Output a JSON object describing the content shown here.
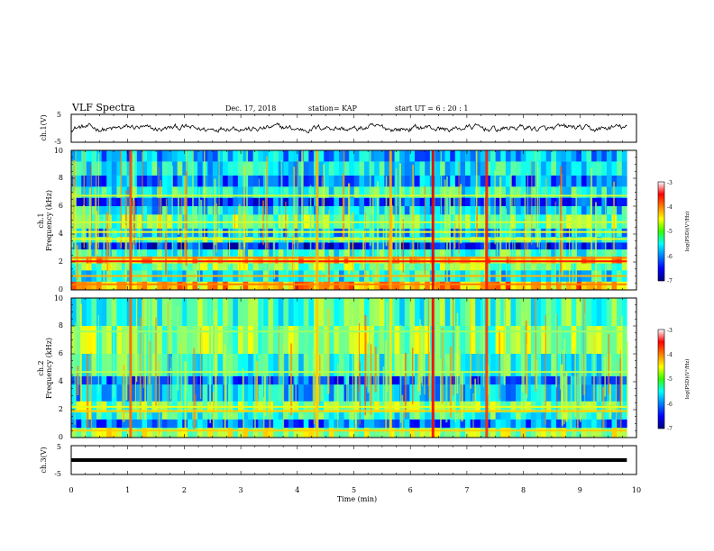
{
  "header": {
    "title": "VLF Spectra",
    "date": "Dec. 17, 2018",
    "station": "station= KAP",
    "start_ut": "start  UT =   6  : 20 : 1"
  },
  "chart_data": [
    {
      "type": "line",
      "name": "ch1-waveform",
      "ylabel": "ch.1(V)",
      "ylim": [
        -5,
        5
      ],
      "yticks": [
        "5",
        "-5"
      ],
      "xlim": [
        0,
        10
      ],
      "x_end": 9.83,
      "trace": "noisy waveform centred near 0 V, amplitude about ±1.5 V"
    },
    {
      "type": "heatmap",
      "name": "ch1-spectrogram",
      "ylabel": "ch.1",
      "ylabel2": "Frequency  (kHz)",
      "ylim": [
        0,
        10
      ],
      "yticks": [
        "0",
        "2",
        "4",
        "6",
        "8",
        "10"
      ],
      "xlim": [
        0,
        10
      ],
      "x_end": 9.83,
      "colorbar": {
        "label": "log(PSD)(V²/Hz)",
        "range": [
          -7,
          -3
        ],
        "ticks": [
          "-3",
          "-4",
          "-5",
          "-6",
          "-7"
        ]
      },
      "bands": [
        {
          "f0": 0.0,
          "f1": 0.6,
          "level": -4.2
        },
        {
          "f0": 0.6,
          "f1": 1.4,
          "level": -5.5
        },
        {
          "f0": 1.4,
          "f1": 1.9,
          "level": -5.0
        },
        {
          "f0": 1.9,
          "f1": 2.4,
          "level": -4.3
        },
        {
          "f0": 2.4,
          "f1": 2.9,
          "level": -5.3
        },
        {
          "f0": 2.9,
          "f1": 3.4,
          "level": -6.4
        },
        {
          "f0": 3.4,
          "f1": 3.8,
          "level": -5.2
        },
        {
          "f0": 3.8,
          "f1": 4.4,
          "level": -5.8
        },
        {
          "f0": 4.4,
          "f1": 5.4,
          "level": -5.1
        },
        {
          "f0": 5.4,
          "f1": 6.0,
          "level": -5.6
        },
        {
          "f0": 6.0,
          "f1": 6.6,
          "level": -6.2
        },
        {
          "f0": 6.6,
          "f1": 7.4,
          "level": -5.4
        },
        {
          "f0": 7.4,
          "f1": 8.2,
          "level": -6.0
        },
        {
          "f0": 8.2,
          "f1": 9.2,
          "level": -5.5
        },
        {
          "f0": 9.2,
          "f1": 10.0,
          "level": -5.8
        }
      ],
      "lines": [
        {
          "f": 0.4,
          "level": -4.0
        },
        {
          "f": 1.0,
          "level": -4.2
        },
        {
          "f": 2.05,
          "level": -3.6
        },
        {
          "f": 2.3,
          "level": -4.0
        },
        {
          "f": 3.65,
          "level": -4.6
        },
        {
          "f": 4.15,
          "level": -4.6
        },
        {
          "f": 4.85,
          "level": -4.7
        },
        {
          "f": 6.75,
          "level": -4.7
        }
      ],
      "bursts": [
        {
          "t": 1.05,
          "level": -3.8
        },
        {
          "t": 4.35,
          "level": -4.2
        },
        {
          "t": 5.65,
          "level": -4.2
        },
        {
          "t": 6.4,
          "level": -3.4
        },
        {
          "t": 7.35,
          "level": -3.6
        }
      ]
    },
    {
      "type": "heatmap",
      "name": "ch2-spectrogram",
      "ylabel": "ch.2",
      "ylabel2": "Frequency  (kHz)",
      "ylim": [
        0,
        10
      ],
      "yticks": [
        "0",
        "2",
        "4",
        "6",
        "8",
        "10"
      ],
      "xlim": [
        0,
        10
      ],
      "x_end": 9.83,
      "colorbar": {
        "label": "log(PSD)(V²/Hz)",
        "range": [
          -7,
          -3
        ],
        "ticks": [
          "-3",
          "-4",
          "-5",
          "-6",
          "-7"
        ]
      },
      "bands": [
        {
          "f0": 0.0,
          "f1": 0.7,
          "level": -4.8
        },
        {
          "f0": 0.7,
          "f1": 1.3,
          "level": -6.0
        },
        {
          "f0": 1.3,
          "f1": 1.8,
          "level": -5.3
        },
        {
          "f0": 1.8,
          "f1": 2.6,
          "level": -5.0
        },
        {
          "f0": 2.6,
          "f1": 3.8,
          "level": -5.7
        },
        {
          "f0": 3.8,
          "f1": 4.4,
          "level": -6.1
        },
        {
          "f0": 4.4,
          "f1": 6.0,
          "level": -5.3
        },
        {
          "f0": 6.0,
          "f1": 8.0,
          "level": -5.0
        },
        {
          "f0": 8.0,
          "f1": 10.0,
          "level": -5.2
        }
      ],
      "lines": [
        {
          "f": 0.5,
          "level": -4.3
        },
        {
          "f": 1.9,
          "level": -4.3
        },
        {
          "f": 2.2,
          "level": -4.6
        },
        {
          "f": 4.7,
          "level": -4.8
        },
        {
          "f": 7.6,
          "level": -4.9
        }
      ],
      "bursts": [
        {
          "t": 1.05,
          "level": -3.9
        },
        {
          "t": 4.35,
          "level": -4.3
        },
        {
          "t": 5.65,
          "level": -4.4
        },
        {
          "t": 6.4,
          "level": -3.5
        },
        {
          "t": 7.35,
          "level": -3.7
        }
      ]
    },
    {
      "type": "line",
      "name": "ch3-waveform",
      "ylabel": "ch.3(V)",
      "ylim": [
        -5,
        5
      ],
      "yticks": [
        "5",
        "-5"
      ],
      "xlim": [
        0,
        10
      ],
      "x_end": 9.83,
      "constant_value": 0,
      "xlabel": "Time  (min)",
      "xticks": [
        "0",
        "1",
        "2",
        "3",
        "4",
        "5",
        "6",
        "7",
        "8",
        "9",
        "10"
      ]
    }
  ]
}
